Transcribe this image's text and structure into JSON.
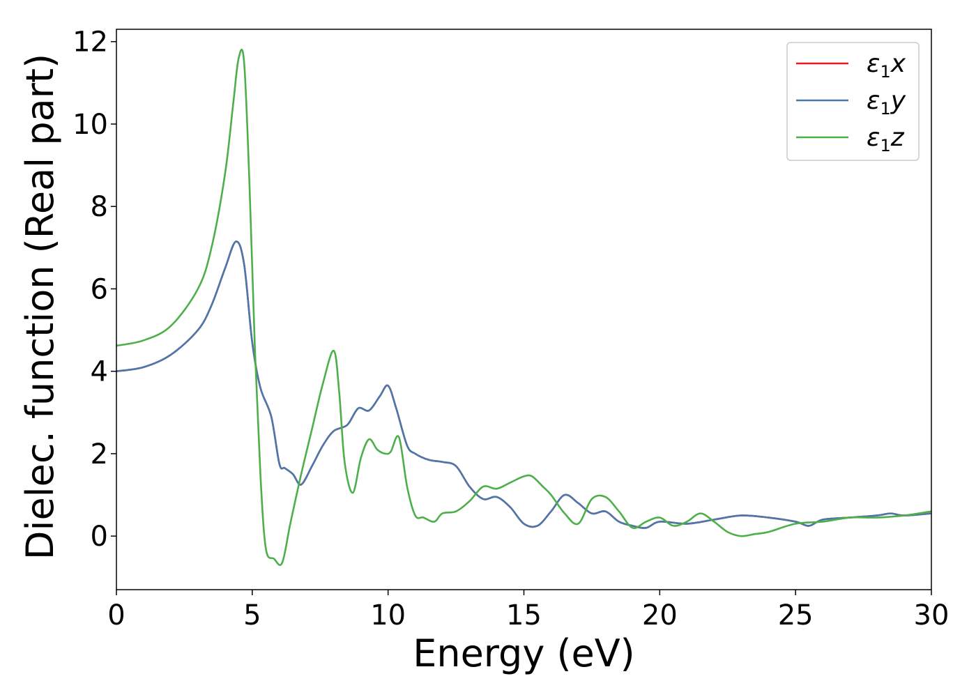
{
  "chart_data": {
    "type": "line",
    "xlabel": "Energy (eV)",
    "ylabel": "Dielec. function (Real part)",
    "xlim": [
      0,
      30
    ],
    "ylim": [
      -1.3,
      12.3
    ],
    "xticks": [
      0,
      5,
      10,
      15,
      20,
      25,
      30
    ],
    "yticks": [
      0,
      2,
      4,
      6,
      8,
      10,
      12
    ],
    "grid": false,
    "legend_position": "top-right",
    "series": [
      {
        "name": "ε1x",
        "legend_symbol": "ε",
        "legend_subscript": "1",
        "legend_suffix": "x",
        "color": "#e41a1c",
        "x": [
          0,
          1,
          2,
          3,
          3.5,
          4.0,
          4.4,
          4.7,
          5.0,
          5.3,
          5.7,
          6.0,
          6.2,
          6.5,
          6.8,
          7.2,
          7.6,
          8.0,
          8.5,
          8.9,
          9.3,
          9.7,
          10.0,
          10.3,
          10.7,
          11.0,
          11.5,
          12.0,
          12.5,
          13.0,
          13.5,
          14.0,
          14.5,
          15.0,
          15.5,
          16.0,
          16.5,
          17.0,
          17.5,
          18.0,
          18.5,
          19.0,
          19.5,
          20.0,
          21.0,
          22.0,
          23.0,
          24.0,
          25.0,
          25.5,
          26.0,
          27.0,
          28.0,
          28.5,
          29.0,
          30.0
        ],
        "values": [
          4.0,
          4.1,
          4.4,
          5.0,
          5.6,
          6.5,
          7.15,
          6.6,
          4.7,
          3.6,
          2.9,
          1.75,
          1.65,
          1.5,
          1.25,
          1.7,
          2.2,
          2.55,
          2.7,
          3.1,
          3.05,
          3.4,
          3.65,
          3.1,
          2.2,
          2.0,
          1.85,
          1.8,
          1.7,
          1.2,
          0.9,
          0.95,
          0.7,
          0.3,
          0.25,
          0.6,
          1.0,
          0.8,
          0.55,
          0.6,
          0.35,
          0.25,
          0.2,
          0.35,
          0.3,
          0.4,
          0.5,
          0.45,
          0.35,
          0.25,
          0.4,
          0.45,
          0.5,
          0.55,
          0.5,
          0.55
        ]
      },
      {
        "name": "ε1y",
        "legend_symbol": "ε",
        "legend_subscript": "1",
        "legend_suffix": "y",
        "color": "#4a78ad",
        "x": [
          0,
          1,
          2,
          3,
          3.5,
          4.0,
          4.4,
          4.7,
          5.0,
          5.3,
          5.7,
          6.0,
          6.2,
          6.5,
          6.8,
          7.2,
          7.6,
          8.0,
          8.5,
          8.9,
          9.3,
          9.7,
          10.0,
          10.3,
          10.7,
          11.0,
          11.5,
          12.0,
          12.5,
          13.0,
          13.5,
          14.0,
          14.5,
          15.0,
          15.5,
          16.0,
          16.5,
          17.0,
          17.5,
          18.0,
          18.5,
          19.0,
          19.5,
          20.0,
          21.0,
          22.0,
          23.0,
          24.0,
          25.0,
          25.5,
          26.0,
          27.0,
          28.0,
          28.5,
          29.0,
          30.0
        ],
        "values": [
          4.0,
          4.1,
          4.4,
          5.0,
          5.6,
          6.5,
          7.15,
          6.6,
          4.7,
          3.6,
          2.9,
          1.75,
          1.65,
          1.5,
          1.25,
          1.7,
          2.2,
          2.55,
          2.7,
          3.1,
          3.05,
          3.4,
          3.65,
          3.1,
          2.2,
          2.0,
          1.85,
          1.8,
          1.7,
          1.2,
          0.9,
          0.95,
          0.7,
          0.3,
          0.25,
          0.6,
          1.0,
          0.8,
          0.55,
          0.6,
          0.35,
          0.25,
          0.2,
          0.35,
          0.3,
          0.4,
          0.5,
          0.45,
          0.35,
          0.25,
          0.4,
          0.45,
          0.5,
          0.55,
          0.5,
          0.55
        ]
      },
      {
        "name": "ε1z",
        "legend_symbol": "ε",
        "legend_subscript": "1",
        "legend_suffix": "z",
        "color": "#4daf4a",
        "x": [
          0,
          1,
          2,
          3,
          3.5,
          4.0,
          4.3,
          4.5,
          4.7,
          4.9,
          5.1,
          5.3,
          5.5,
          5.8,
          6.1,
          6.4,
          6.8,
          7.2,
          7.6,
          8.0,
          8.2,
          8.4,
          8.7,
          9.0,
          9.3,
          9.6,
          9.9,
          10.1,
          10.4,
          10.7,
          11.0,
          11.3,
          11.7,
          12.0,
          12.5,
          13.0,
          13.5,
          14.0,
          14.5,
          15.0,
          15.3,
          15.7,
          16.0,
          16.5,
          17.0,
          17.5,
          18.0,
          18.5,
          19.0,
          19.5,
          20.0,
          20.5,
          21.0,
          21.5,
          22.0,
          22.5,
          23.0,
          23.5,
          24.0,
          25.0,
          26.0,
          27.0,
          28.0,
          29.0,
          30.0
        ],
        "values": [
          4.62,
          4.75,
          5.1,
          6.0,
          7.0,
          8.8,
          10.5,
          11.6,
          11.5,
          8.5,
          4.5,
          1.5,
          -0.3,
          -0.55,
          -0.65,
          0.3,
          1.5,
          2.6,
          3.7,
          4.5,
          3.5,
          1.8,
          1.05,
          1.9,
          2.35,
          2.1,
          2.0,
          2.05,
          2.4,
          1.2,
          0.5,
          0.45,
          0.35,
          0.55,
          0.6,
          0.85,
          1.2,
          1.15,
          1.3,
          1.45,
          1.45,
          1.2,
          1.0,
          0.55,
          0.3,
          0.9,
          0.95,
          0.6,
          0.2,
          0.35,
          0.45,
          0.25,
          0.35,
          0.55,
          0.35,
          0.1,
          0.0,
          0.05,
          0.1,
          0.3,
          0.35,
          0.45,
          0.45,
          0.5,
          0.6
        ]
      }
    ]
  }
}
